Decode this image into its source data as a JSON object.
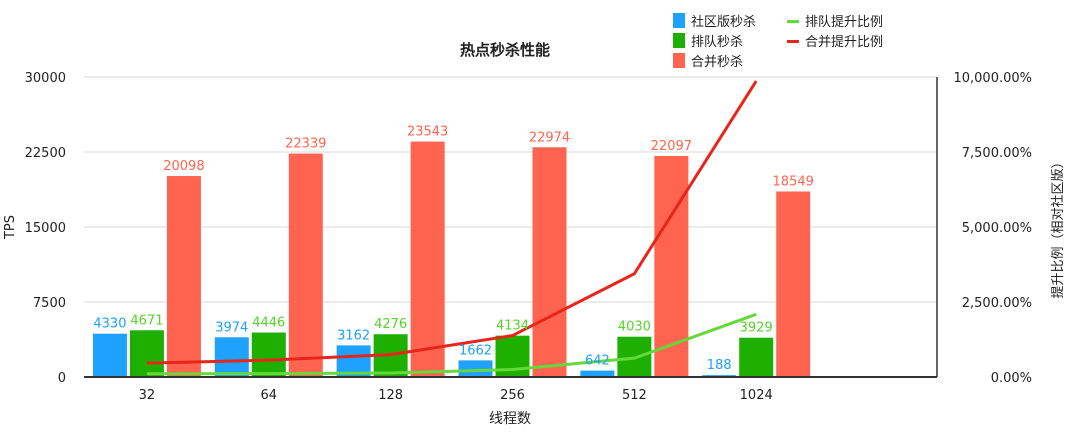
{
  "chart_data": {
    "type": "bar",
    "title": "热点秒杀性能",
    "xlabel": "线程数",
    "ylabel": "TPS",
    "y2label": "提升比例（相对社区版）",
    "categories": [
      "32",
      "64",
      "128",
      "256",
      "512",
      "1024"
    ],
    "ylim": [
      0,
      30000
    ],
    "yticks": [
      "0",
      "7500",
      "15000",
      "22500",
      "30000"
    ],
    "y2lim": [
      0,
      10000
    ],
    "y2ticks": [
      "0.00%",
      "2,500.00%",
      "5,000.00%",
      "7,500.00%",
      "10,000.00%"
    ],
    "grid": true,
    "legend_position": "top-right",
    "series": [
      {
        "name": "社区版秒杀",
        "kind": "bar",
        "axis": "left",
        "color": "#1ea1ff",
        "label_color": "#1ea1ff",
        "values": [
          4330,
          3974,
          3162,
          1662,
          642,
          188
        ]
      },
      {
        "name": "排队秒杀",
        "kind": "bar",
        "axis": "left",
        "color": "#1eb000",
        "label_color": "#55d42a",
        "values": [
          4671,
          4446,
          4276,
          4134,
          4030,
          3929
        ]
      },
      {
        "name": "合并秒杀",
        "kind": "bar",
        "axis": "left",
        "color": "#ff6450",
        "label_color": "#ff6450",
        "values": [
          20098,
          22339,
          23543,
          22974,
          22097,
          18549
        ]
      },
      {
        "name": "排队提升比例",
        "kind": "line",
        "axis": "right",
        "color": "#66d83a",
        "values": [
          108,
          112,
          135,
          249,
          628,
          2090
        ]
      },
      {
        "name": "合并提升比例",
        "kind": "line",
        "axis": "right",
        "color": "#e8251a",
        "values": [
          464,
          562,
          745,
          1382,
          3442,
          9866
        ]
      }
    ]
  }
}
